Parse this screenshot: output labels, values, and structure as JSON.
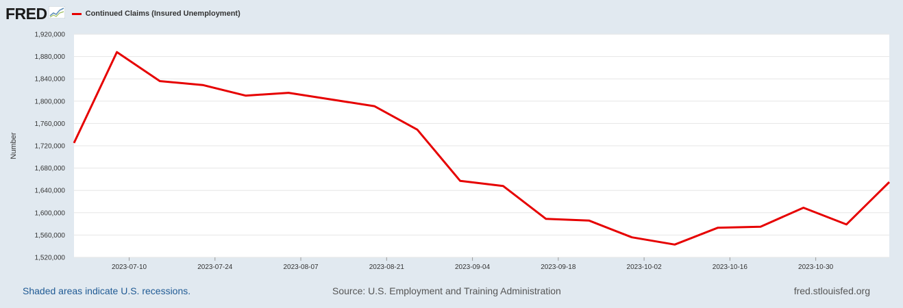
{
  "header": {
    "logo_text": "FRED",
    "logo_icon": "trend-line-icon",
    "legend_label": "Continued Claims (Insured Unemployment)"
  },
  "colors": {
    "background": "#e1e9f0",
    "plot_background": "#ffffff",
    "series": "#e60000",
    "grid": "#e6e6e6",
    "recession_note": "#1f5a94"
  },
  "footer": {
    "recession_note": "Shaded areas indicate U.S. recessions.",
    "source": "Source: U.S. Employment and Training Administration",
    "site": "fred.stlouisfed.org"
  },
  "chart_data": {
    "type": "line",
    "title": "",
    "ylabel": "Number",
    "xlabel": "",
    "ylim": [
      1520000,
      1920000
    ],
    "yticks": [
      1520000,
      1560000,
      1600000,
      1640000,
      1680000,
      1720000,
      1760000,
      1800000,
      1840000,
      1880000,
      1920000
    ],
    "ytick_labels": [
      "1,520,000",
      "1,560,000",
      "1,600,000",
      "1,640,000",
      "1,680,000",
      "1,720,000",
      "1,760,000",
      "1,800,000",
      "1,840,000",
      "1,880,000",
      "1,920,000"
    ],
    "xlim": [
      "2023-07-01",
      "2023-11-11"
    ],
    "xticks": [
      "2023-07-10",
      "2023-07-24",
      "2023-08-07",
      "2023-08-21",
      "2023-09-04",
      "2023-09-18",
      "2023-10-02",
      "2023-10-16",
      "2023-10-30"
    ],
    "grid": true,
    "legend": "top-left",
    "series": [
      {
        "name": "Continued Claims (Insured Unemployment)",
        "x": [
          "2023-07-01",
          "2023-07-08",
          "2023-07-15",
          "2023-07-22",
          "2023-07-29",
          "2023-08-05",
          "2023-08-12",
          "2023-08-19",
          "2023-08-26",
          "2023-09-02",
          "2023-09-09",
          "2023-09-16",
          "2023-09-23",
          "2023-09-30",
          "2023-10-07",
          "2023-10-14",
          "2023-10-21",
          "2023-10-28",
          "2023-11-04",
          "2023-11-11"
        ],
        "y": [
          1725000,
          1888000,
          1836000,
          1829000,
          1810000,
          1815000,
          1803000,
          1791000,
          1749000,
          1657000,
          1648000,
          1589000,
          1586000,
          1556000,
          1543000,
          1573000,
          1575000,
          1609000,
          1579000,
          1655000
        ]
      }
    ]
  }
}
